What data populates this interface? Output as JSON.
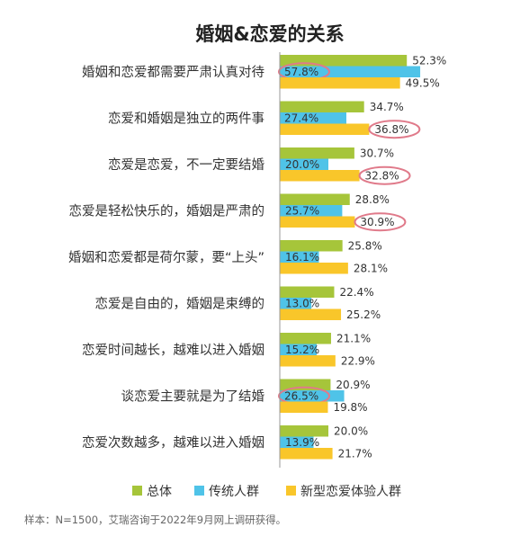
{
  "chart_data": {
    "type": "bar",
    "orientation": "horizontal",
    "title": "婚姻&恋爱的关系",
    "categories": [
      "婚姻和恋爱都需要严肃认真对待",
      "恋爱和婚姻是独立的两件事",
      "恋爱是恋爱，不一定要结婚",
      "恋爱是轻松快乐的，婚姻是严肃的",
      "婚姻和恋爱都是荷尔蒙，要“上头”",
      "恋爱是自由的，婚姻是束缚的",
      "恋爱时间越长，越难以进入婚姻",
      "谈恋爱主要就是为了结婚",
      "恋爱次数越多，越难以进入婚姻"
    ],
    "series": [
      {
        "name": "总体",
        "color": "#a6c53a",
        "values": [
          52.3,
          34.7,
          30.7,
          28.8,
          25.8,
          22.4,
          21.1,
          20.9,
          20.0
        ],
        "labels": [
          "52.3%",
          "34.7%",
          "30.7%",
          "28.8%",
          "25.8%",
          "22.4%",
          "21.1%",
          "20.9%",
          "20.0%"
        ]
      },
      {
        "name": "传统人群",
        "color": "#4fc3e8",
        "values": [
          57.8,
          27.4,
          20.0,
          25.7,
          16.1,
          13.0,
          15.2,
          26.5,
          13.9
        ],
        "labels": [
          "57.8%",
          "27.4%",
          "20.0%",
          "25.7%",
          "16.1%",
          "13.0%",
          "15.2%",
          "26.5%",
          "13.9%"
        ]
      },
      {
        "name": "新型恋爱体验人群",
        "color": "#f9c62a",
        "values": [
          49.5,
          36.8,
          32.8,
          30.9,
          28.1,
          25.2,
          22.9,
          19.8,
          21.7
        ],
        "labels": [
          "49.5%",
          "36.8%",
          "32.8%",
          "30.9%",
          "28.1%",
          "25.2%",
          "22.9%",
          "19.8%",
          "21.7%"
        ]
      }
    ],
    "highlighted": [
      {
        "category": 0,
        "series": 1
      },
      {
        "category": 1,
        "series": 2
      },
      {
        "category": 2,
        "series": 2
      },
      {
        "category": 3,
        "series": 2
      },
      {
        "category": 7,
        "series": 1
      }
    ],
    "highlight_color": "#e07a8a",
    "xlim": [
      0,
      60
    ],
    "legend_position": "bottom",
    "grid": false
  },
  "footnote": "样本：N=1500，艾瑞咨询于2022年9月网上调研获得。"
}
